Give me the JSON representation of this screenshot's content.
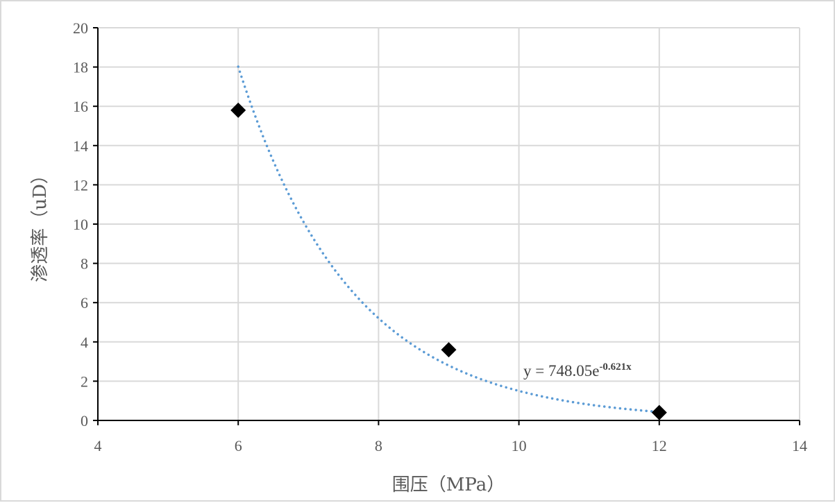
{
  "chart_data": {
    "type": "scatter",
    "xlabel": "围压（MPa）",
    "ylabel": "渗透率（uD）",
    "xlim": [
      4,
      14
    ],
    "ylim": [
      0,
      20
    ],
    "x_ticks": [
      4,
      6,
      8,
      10,
      12,
      14
    ],
    "y_ticks": [
      0,
      2,
      4,
      6,
      8,
      10,
      12,
      14,
      16,
      18,
      20
    ],
    "grid": true,
    "legend": "none",
    "series": [
      {
        "marker": "diamond",
        "color": "#000000",
        "points": [
          {
            "x": 6,
            "y": 15.8
          },
          {
            "x": 9,
            "y": 3.6
          },
          {
            "x": 12,
            "y": 0.4
          }
        ]
      }
    ],
    "trendline": {
      "kind": "exponential",
      "a": 748.05,
      "b": -0.621,
      "x_range": [
        6,
        12
      ],
      "style": "dotted",
      "color": "#5b9bd5",
      "equation_text": "y = 748.05e",
      "equation_exponent": "-0.621x"
    }
  }
}
